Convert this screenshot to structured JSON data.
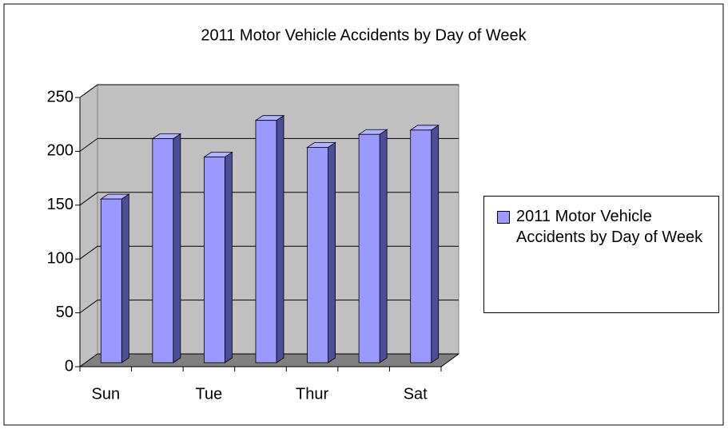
{
  "chart_data": {
    "type": "bar",
    "title": "2011 Motor Vehicle Accidents by Day of Week",
    "categories": [
      "Sun",
      null,
      "Tue",
      null,
      "Thur",
      null,
      "Sat"
    ],
    "series": [
      {
        "name": "2011 Motor Vehicle Accidents by Day of Week",
        "color": "#9999ff",
        "values": [
          152,
          208,
          191,
          225,
          200,
          212,
          216
        ]
      }
    ],
    "ylim": [
      0,
      250
    ],
    "yticks": [
      0,
      50,
      100,
      150,
      200,
      250
    ],
    "grid": true,
    "legend": "right"
  }
}
